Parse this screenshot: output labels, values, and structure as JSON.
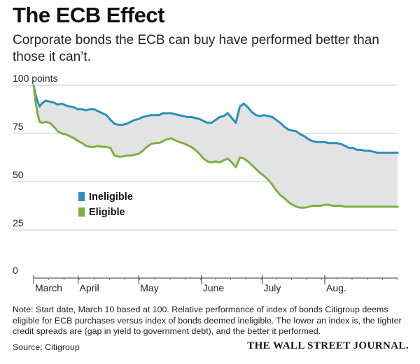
{
  "header": {
    "title": "The ECB Effect",
    "subtitle": "Corporate bonds the ECB can buy have performed better than those it can’t."
  },
  "chart_data": {
    "type": "line",
    "title": "The ECB Effect",
    "ylabel": "100 points",
    "ylim": [
      0,
      100
    ],
    "y_ticks": [
      {
        "value": 100,
        "label": "100 points"
      },
      {
        "value": 75,
        "label": "75"
      },
      {
        "value": 50,
        "label": "50"
      },
      {
        "value": 25,
        "label": "25"
      },
      {
        "value": 0,
        "label": "0"
      }
    ],
    "x_range": [
      0,
      180
    ],
    "month_ticks": [
      {
        "day": 0,
        "label": "March"
      },
      {
        "day": 22,
        "label": "April"
      },
      {
        "day": 52,
        "label": "May"
      },
      {
        "day": 83,
        "label": "June"
      },
      {
        "day": 113,
        "label": "July"
      },
      {
        "day": 144,
        "label": "Aug."
      }
    ],
    "legend": [
      "Ineligible",
      "Eligible"
    ],
    "legend_position": "bottom-left",
    "shading": "gap between series",
    "series": [
      {
        "name": "Ineligible",
        "color": "#2a8fb8",
        "x": [
          0,
          1,
          2,
          3,
          4,
          6,
          8,
          10,
          12,
          14,
          16,
          18,
          20,
          22,
          24,
          26,
          28,
          30,
          32,
          34,
          36,
          38,
          40,
          42,
          44,
          46,
          48,
          50,
          52,
          54,
          56,
          58,
          60,
          62,
          64,
          66,
          68,
          70,
          72,
          74,
          76,
          78,
          80,
          82,
          84,
          86,
          88,
          90,
          92,
          94,
          96,
          98,
          100,
          102,
          104,
          106,
          108,
          110,
          112,
          114,
          116,
          118,
          120,
          122,
          124,
          126,
          128,
          130,
          132,
          134,
          136,
          138,
          140,
          142,
          144,
          146,
          148,
          150,
          152,
          154,
          156,
          158,
          160,
          162,
          164,
          166,
          168,
          170,
          172,
          174,
          176,
          178,
          180
        ],
        "values": [
          100,
          95,
          91.5,
          89,
          90.5,
          92,
          91.5,
          91,
          90,
          90.5,
          89.5,
          89,
          88.5,
          87.5,
          87.5,
          87,
          87.5,
          87.5,
          86.5,
          85.5,
          84.5,
          82,
          80,
          79.5,
          79.5,
          80,
          81,
          82,
          82.5,
          83.5,
          84,
          84.5,
          84.5,
          84.5,
          85.5,
          85.5,
          85.5,
          85,
          84.5,
          84,
          83.5,
          83.5,
          83,
          82.5,
          81.5,
          80.5,
          80.5,
          82,
          83.5,
          84,
          85.5,
          83,
          80.5,
          89,
          90.5,
          88.5,
          86,
          84.5,
          84,
          84.5,
          84,
          83.5,
          82,
          80.5,
          78.5,
          77,
          76.5,
          76,
          74.5,
          73.5,
          72,
          71,
          70.5,
          70.5,
          70.5,
          70,
          70,
          70,
          69.5,
          68.5,
          67.5,
          67.5,
          66.5,
          66.5,
          66,
          66,
          65.5,
          65,
          65,
          65,
          65,
          65,
          65
        ]
      },
      {
        "name": "Eligible",
        "color": "#7db044",
        "x": [
          0,
          1,
          2,
          3,
          4,
          6,
          8,
          10,
          12,
          14,
          16,
          18,
          20,
          22,
          24,
          26,
          28,
          30,
          32,
          34,
          36,
          38,
          40,
          42,
          44,
          46,
          48,
          50,
          52,
          54,
          56,
          58,
          60,
          62,
          64,
          66,
          68,
          70,
          72,
          74,
          76,
          78,
          80,
          82,
          84,
          86,
          88,
          90,
          92,
          94,
          96,
          98,
          100,
          102,
          104,
          106,
          108,
          110,
          112,
          114,
          116,
          118,
          120,
          122,
          124,
          126,
          128,
          130,
          132,
          134,
          136,
          138,
          140,
          142,
          144,
          146,
          148,
          150,
          152,
          154,
          156,
          158,
          160,
          162,
          164,
          166,
          168,
          170,
          172,
          174,
          176,
          178,
          180
        ],
        "values": [
          100,
          91,
          85,
          81,
          80.5,
          81,
          80.5,
          78.5,
          76,
          75,
          74.5,
          73.5,
          72.5,
          71,
          70,
          68.5,
          68,
          68,
          68.5,
          68,
          68,
          67.5,
          63.5,
          63,
          63,
          63.5,
          63.5,
          64,
          64.5,
          66,
          68,
          69.5,
          70,
          70,
          71,
          72,
          72.5,
          71.5,
          70.5,
          70,
          69,
          68,
          66.5,
          64.5,
          62,
          60.5,
          60,
          60.5,
          60,
          61,
          62,
          60,
          57.5,
          62.5,
          62,
          60.5,
          58.5,
          56.5,
          54.5,
          53,
          51,
          48.5,
          45.5,
          43,
          41.5,
          39.5,
          38,
          37,
          36.5,
          36.5,
          37,
          37.5,
          37.5,
          37.5,
          38,
          38,
          37.5,
          37.5,
          37.5,
          37,
          37,
          37,
          37,
          37,
          37,
          37,
          37,
          37,
          37,
          37,
          37,
          37,
          37
        ]
      }
    ]
  },
  "footer": {
    "note": "Note: Start date, March 10 based at 100. Relative performance of index of bonds Citigroup deems eligible for ECB purchases versus index of bonds deemed ineligible. The lower an index is, the tighter credit spreads are (gap in yield to government debt), and the better it performed.",
    "source": "Source: Citigroup",
    "publisher": "THE WALL STREET JOURNAL."
  },
  "colors": {
    "ineligible": "#2a8fb8",
    "eligible": "#7db044",
    "fill": "#e3e3e3",
    "grid": "#c8c8c8"
  }
}
